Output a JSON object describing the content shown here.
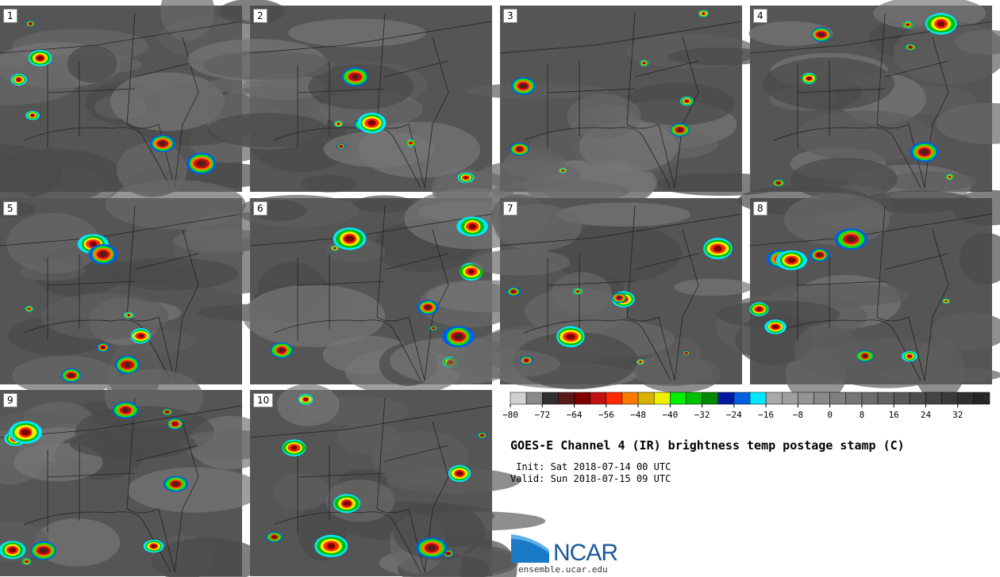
{
  "panels": [
    {
      "label": "1"
    },
    {
      "label": "2"
    },
    {
      "label": "3"
    },
    {
      "label": "4"
    },
    {
      "label": "5"
    },
    {
      "label": "6"
    },
    {
      "label": "7"
    },
    {
      "label": "8"
    },
    {
      "label": "9"
    },
    {
      "label": "10"
    }
  ],
  "colorbar": {
    "colors": [
      "#d0d0d0",
      "#8a8a8a",
      "#303030",
      "#5a1a1a",
      "#800000",
      "#c01010",
      "#ff2a00",
      "#ff7a00",
      "#d8b000",
      "#f0f000",
      "#00f000",
      "#00c000",
      "#008800",
      "#0018a0",
      "#0060e0",
      "#00e8ff",
      "#a8a8a8",
      "#9e9e9e",
      "#949494",
      "#8a8a8a",
      "#808080",
      "#767676",
      "#6c6c6c",
      "#626262",
      "#585858",
      "#4e4e4e",
      "#444444",
      "#3a3a3a",
      "#303030",
      "#262626"
    ],
    "tick_labels": [
      "−80",
      "−72",
      "−64",
      "−56",
      "−48",
      "−40",
      "−32",
      "−24",
      "−16",
      "−8",
      "0",
      "8",
      "16",
      "24",
      "32"
    ]
  },
  "title": "GOES-E Channel 4 (IR) brightness temp postage stamp (C)",
  "init_line": " Init: Sat 2018-07-14 00 UTC",
  "valid_line": "Valid: Sun 2018-07-15 09 UTC",
  "logo_text": "NCAR",
  "site": "ensemble.ucar.edu",
  "colors": {
    "background": "#555555",
    "land_border": "#222222",
    "logo_blue": "#1a5a96"
  }
}
